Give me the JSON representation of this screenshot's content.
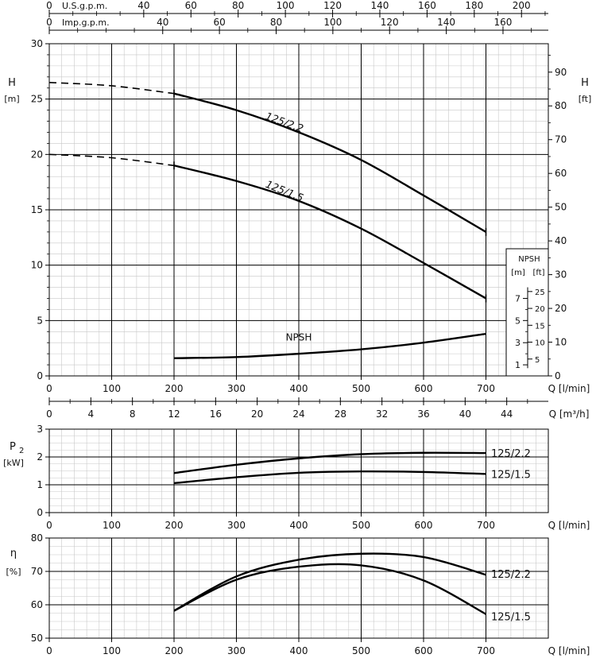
{
  "chart_data": [
    {
      "type": "line",
      "id": "head",
      "title": "",
      "x_unit_label": "Q [l/min]",
      "ylabel_left": "H",
      "ylabel_left_unit": "[m]",
      "ylabel_right": "H",
      "ylabel_right_unit": "[ft]",
      "xlim": [
        0,
        800
      ],
      "ylim": [
        0,
        30
      ],
      "x_ticks": [
        0,
        100,
        200,
        300,
        400,
        500,
        600,
        700
      ],
      "y_ticks": [
        0,
        5,
        10,
        15,
        20,
        25,
        30
      ],
      "y_ft_ticks": [
        0,
        10,
        20,
        30,
        40,
        50,
        60,
        70,
        80,
        90
      ],
      "grid": true,
      "top_axes": [
        {
          "label": "U.S.g.p.m.",
          "ticks": [
            0,
            40,
            60,
            80,
            100,
            120,
            140,
            160,
            180,
            200
          ],
          "l_per_unit": 3.785
        },
        {
          "label": "Imp.g.p.m.",
          "ticks": [
            0,
            40,
            60,
            80,
            100,
            120,
            140,
            160
          ],
          "l_per_unit": 4.546
        }
      ],
      "m3h_axis": {
        "label": "Q [m³/h]",
        "ticks": [
          0,
          4,
          8,
          12,
          16,
          20,
          24,
          28,
          32,
          36,
          40,
          44
        ]
      },
      "npsh_inset": {
        "title": "NPSH",
        "unit_m": "[m]",
        "unit_ft": "[ft]",
        "m_ticks": [
          1,
          3,
          5,
          7
        ],
        "ft_ticks": [
          5,
          10,
          15,
          20,
          25
        ]
      },
      "series": [
        {
          "name": "125/2.2",
          "dashed_x": [
            0,
            100,
            200
          ],
          "dashed_y": [
            26.5,
            26.2,
            25.5
          ],
          "x": [
            200,
            300,
            400,
            500,
            600,
            700
          ],
          "y": [
            25.5,
            24.0,
            22.0,
            19.5,
            16.3,
            13.0
          ]
        },
        {
          "name": "125/1.5",
          "dashed_x": [
            0,
            100,
            200
          ],
          "dashed_y": [
            20.0,
            19.7,
            19.0
          ],
          "x": [
            200,
            300,
            400,
            500,
            600,
            700
          ],
          "y": [
            19.0,
            17.6,
            15.8,
            13.3,
            10.2,
            7.0
          ]
        },
        {
          "name": "NPSH",
          "x": [
            200,
            300,
            400,
            500,
            600,
            700
          ],
          "y": [
            1.6,
            1.7,
            2.0,
            2.4,
            3.0,
            3.8
          ]
        }
      ]
    },
    {
      "type": "line",
      "id": "power",
      "ylabel": "P",
      "ylabel_sub": "2",
      "ylabel_unit": "[kW]",
      "x_unit_label": "Q [l/min]",
      "xlim": [
        0,
        800
      ],
      "ylim": [
        0,
        3
      ],
      "x_ticks": [
        0,
        100,
        200,
        300,
        400,
        500,
        600,
        700
      ],
      "y_ticks": [
        0,
        1,
        2,
        3
      ],
      "grid": true,
      "series": [
        {
          "name": "125/2.2",
          "x": [
            200,
            300,
            400,
            500,
            600,
            700
          ],
          "y": [
            1.42,
            1.72,
            1.95,
            2.1,
            2.15,
            2.14
          ]
        },
        {
          "name": "125/1.5",
          "x": [
            200,
            300,
            400,
            500,
            600,
            700
          ],
          "y": [
            1.06,
            1.27,
            1.43,
            1.48,
            1.46,
            1.39
          ]
        }
      ]
    },
    {
      "type": "line",
      "id": "efficiency",
      "ylabel": "η",
      "ylabel_unit": "[%]",
      "x_unit_label": "Q [l/min]",
      "xlim": [
        0,
        800
      ],
      "ylim": [
        50,
        80
      ],
      "x_ticks": [
        0,
        100,
        200,
        300,
        400,
        500,
        600,
        700
      ],
      "y_ticks": [
        50,
        60,
        70,
        80
      ],
      "grid": true,
      "series": [
        {
          "name": "125/2.2",
          "x": [
            200,
            300,
            400,
            500,
            600,
            700
          ],
          "y": [
            58.2,
            68.5,
            73.5,
            75.3,
            74.3,
            69.0
          ]
        },
        {
          "name": "125/1.5",
          "x": [
            200,
            300,
            400,
            500,
            600,
            700
          ],
          "y": [
            58.2,
            67.5,
            71.4,
            71.8,
            67.3,
            57.2
          ]
        }
      ]
    }
  ]
}
